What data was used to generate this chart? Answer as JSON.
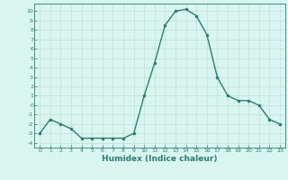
{
  "x": [
    0,
    1,
    2,
    3,
    4,
    5,
    6,
    7,
    8,
    9,
    10,
    11,
    12,
    13,
    14,
    15,
    16,
    17,
    18,
    19,
    20,
    21,
    22,
    23
  ],
  "y": [
    -3,
    -1.5,
    -2,
    -2.5,
    -3.5,
    -3.5,
    -3.5,
    -3.5,
    -3.5,
    -3,
    1,
    4.5,
    8.5,
    10,
    10.2,
    9.5,
    7.5,
    3,
    1,
    0.5,
    0.5,
    0,
    -1.5,
    -2
  ],
  "line_color": "#2e7d72",
  "marker": "o",
  "marker_size": 1.5,
  "bg_color": "#d8f5f0",
  "grid_color": "#c0ddd8",
  "xlabel": "Humidex (Indice chaleur)",
  "ylim": [
    -4.5,
    10.8
  ],
  "xlim": [
    -0.5,
    23.5
  ],
  "yticks": [
    10,
    9,
    8,
    7,
    6,
    5,
    4,
    3,
    2,
    1,
    0,
    -1,
    -2,
    -3,
    -4
  ],
  "xticks": [
    0,
    1,
    2,
    3,
    4,
    5,
    6,
    7,
    8,
    9,
    10,
    11,
    12,
    13,
    14,
    15,
    16,
    17,
    18,
    19,
    20,
    21,
    22,
    23
  ],
  "tick_fontsize": 4.5,
  "xlabel_fontsize": 6.5,
  "line_width": 1.0
}
